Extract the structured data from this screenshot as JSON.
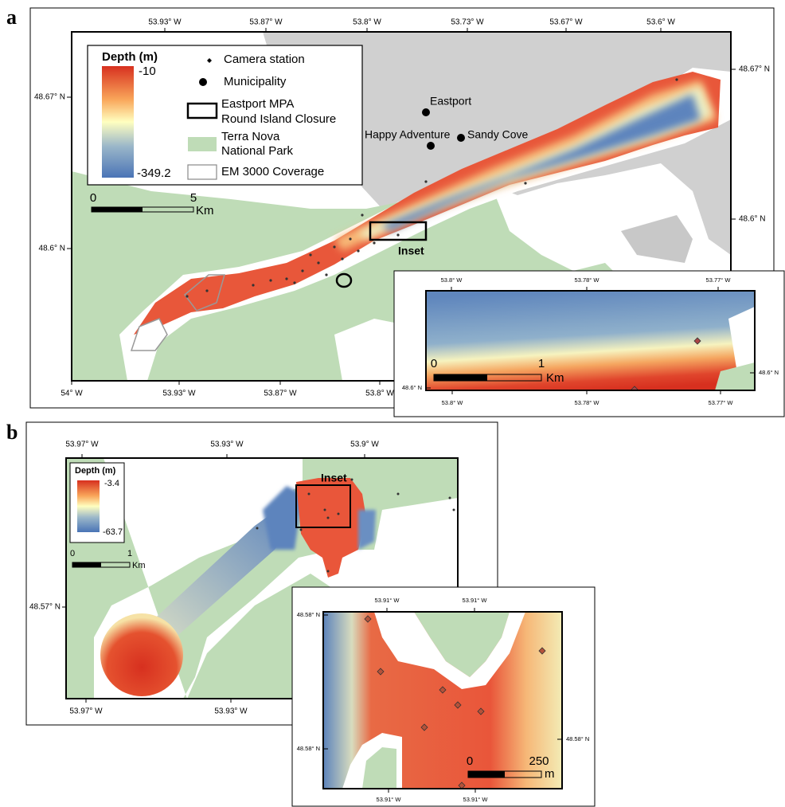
{
  "panel_a": {
    "label": "a",
    "top_ticks": [
      "53.93° W",
      "53.87° W",
      "53.8° W",
      "53.73° W",
      "53.67° W",
      "53.6° W"
    ],
    "bottom_ticks": [
      "54° W",
      "53.93° W",
      "53.87° W",
      "53.8° W"
    ],
    "left_ticks": [
      "48.67° N",
      "48.6° N"
    ],
    "right_ticks": [
      "48.67° N",
      "48.6° N"
    ],
    "legend": {
      "title": "Depth (m)",
      "max_label": "-10",
      "min_label": "-349.2",
      "items": [
        {
          "lines": [
            "Camera station"
          ]
        },
        {
          "lines": [
            "Municipality"
          ]
        },
        {
          "lines": [
            "Eastport MPA",
            "Round Island Closure"
          ]
        },
        {
          "lines": [
            "Terra Nova",
            "National Park"
          ]
        },
        {
          "lines": [
            "EM 3000 Coverage"
          ]
        }
      ]
    },
    "scale": {
      "labels": [
        "0",
        "5"
      ],
      "unit": "Km"
    },
    "places": [
      "Eastport",
      "Happy Adventure",
      "Sandy Cove"
    ],
    "inset_label": "Inset",
    "inset": {
      "top_ticks": [
        "53.8° W",
        "53.78° W",
        "53.77° W"
      ],
      "bottom_ticks": [
        "53.8° W",
        "53.78° W",
        "53.77° W"
      ],
      "left_ticks": [
        "48.6° N"
      ],
      "right_ticks": [
        "48.6° N"
      ],
      "scale": {
        "labels": [
          "0",
          "1"
        ],
        "unit": "Km"
      }
    }
  },
  "panel_b": {
    "label": "b",
    "top_ticks": [
      "53.97° W",
      "53.93° W",
      "53.9° W"
    ],
    "bottom_ticks": [
      "53.97° W",
      "53.93° W"
    ],
    "left_ticks": [
      "48.57° N"
    ],
    "legend": {
      "title": "Depth (m)",
      "max_label": "-3.4",
      "min_label": "-63.7"
    },
    "scale": {
      "labels": [
        "0",
        "1"
      ],
      "unit": "Km"
    },
    "inset_label": "Inset",
    "inset": {
      "top_ticks": [
        "53.91° W",
        "53.91° W"
      ],
      "bottom_ticks": [
        "53.91° W",
        "53.91° W"
      ],
      "left_ticks": [
        "48.58° N",
        "48.58° N"
      ],
      "right_ticks": [
        "48.58° N"
      ],
      "scale": {
        "labels": [
          "0",
          "250"
        ],
        "unit": "m"
      }
    }
  }
}
